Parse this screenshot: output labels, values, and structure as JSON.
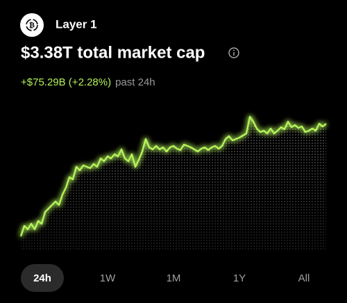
{
  "header": {
    "category": "Layer 1",
    "title": "$3.38T total market cap",
    "change": "+$75.29B (+2.28%)",
    "period": "past 24h"
  },
  "chart_data": {
    "type": "line",
    "color": "#b4f25a",
    "ylim": [
      3.295,
      3.39
    ],
    "values": [
      3.2975,
      3.305,
      3.3025,
      3.3065,
      3.3025,
      3.3085,
      3.3065,
      3.315,
      3.3175,
      3.32,
      3.3225,
      3.32,
      3.3275,
      3.3325,
      3.34,
      3.3385,
      3.3475,
      3.345,
      3.3485,
      3.3475,
      3.3465,
      3.3495,
      3.3475,
      3.3535,
      3.3515,
      3.355,
      3.3535,
      3.3565,
      3.355,
      3.36,
      3.3535,
      3.3515,
      3.3565,
      3.3475,
      3.3525,
      3.3585,
      3.3675,
      3.3615,
      3.36,
      3.3625,
      3.36,
      3.3615,
      3.3585,
      3.3615,
      3.3625,
      3.3605,
      3.3595,
      3.3635,
      3.3625,
      3.3615,
      3.36,
      3.3585,
      3.3605,
      3.3615,
      3.3595,
      3.3615,
      3.3625,
      3.3605,
      3.3625,
      3.3675,
      3.3695,
      3.3665,
      3.3675,
      3.3685,
      3.37,
      3.3715,
      3.3835,
      3.38,
      3.375,
      3.3725,
      3.3735,
      3.3715,
      3.375,
      3.3715,
      3.3735,
      3.376,
      3.3745,
      3.38,
      3.376,
      3.3775,
      3.3755,
      3.3765,
      3.3725,
      3.3735,
      3.375,
      3.3735,
      3.3785,
      3.3765,
      3.3785
    ]
  },
  "tabs": [
    "24h",
    "1W",
    "1M",
    "1Y",
    "All"
  ]
}
